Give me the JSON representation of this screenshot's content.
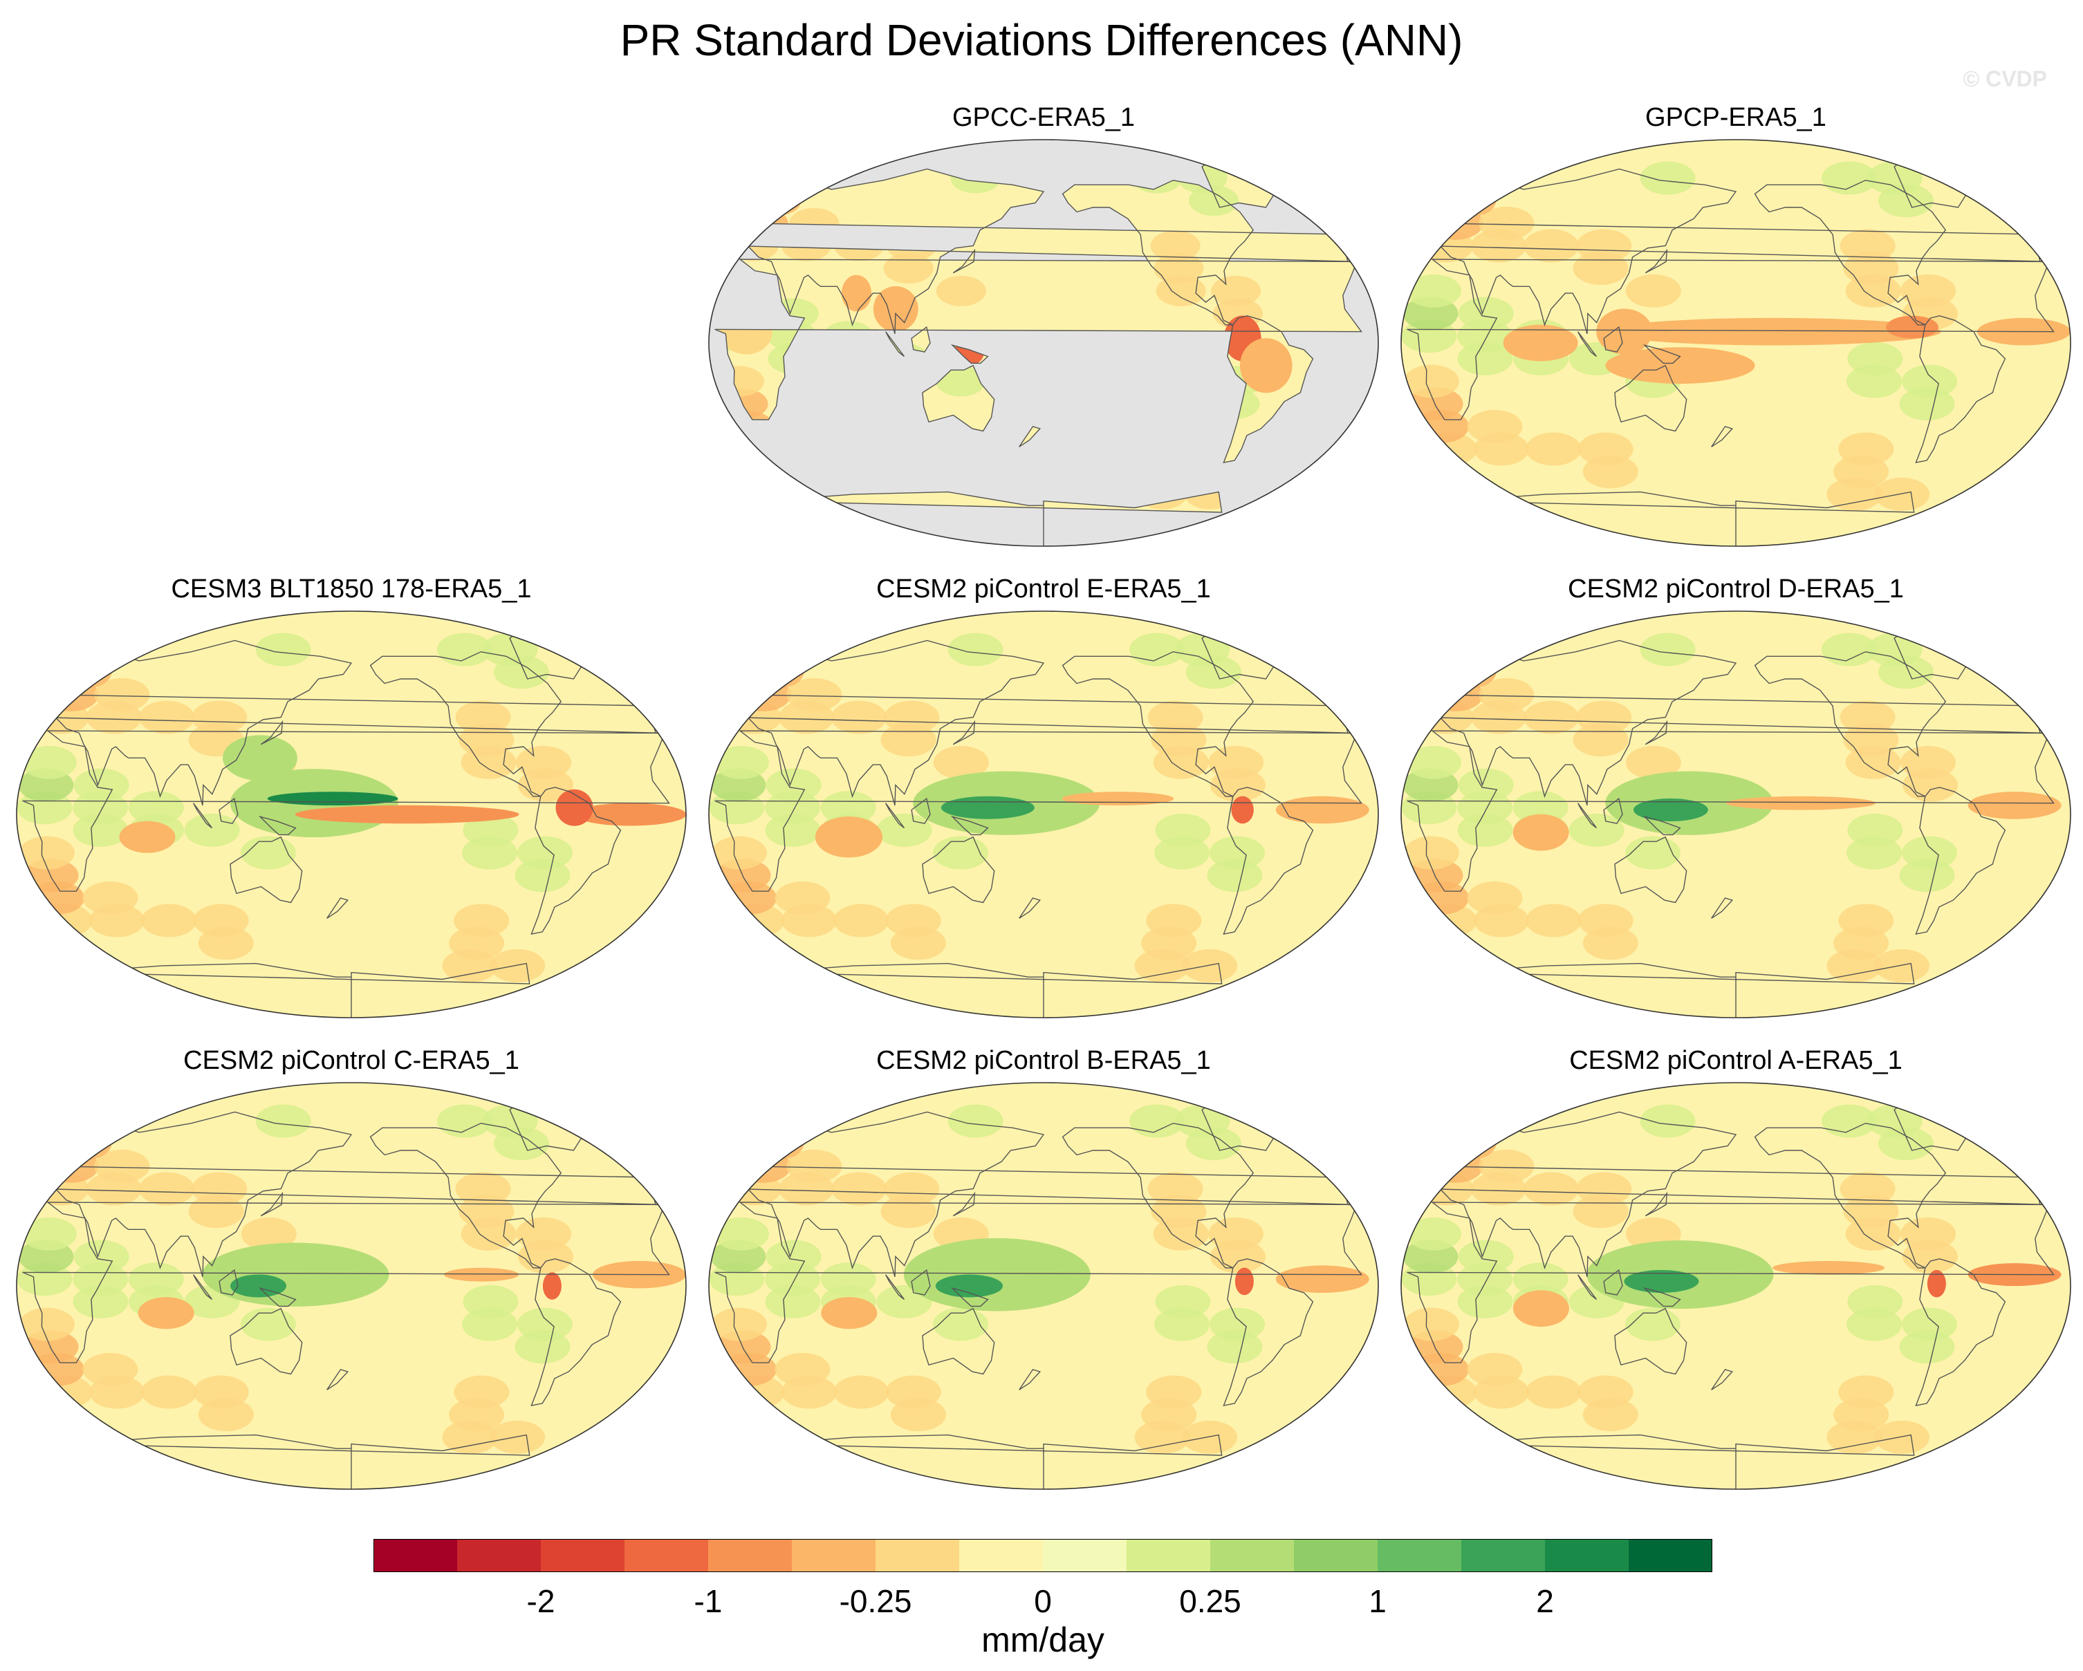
{
  "figure": {
    "title": "PR Standard Deviations Differences (ANN)",
    "watermark": "© CVDP"
  },
  "chart_data": {
    "type": "heatmap",
    "title": "PR Standard Deviations Differences (ANN)",
    "projection": "Robinson, Pacific-centered (central longitude 180)",
    "units": "mm/day",
    "missing_color": "#e3e3e3",
    "colorbar": {
      "orientation": "horizontal",
      "position": "bottom",
      "colors": [
        "#a50026",
        "#c8272b",
        "#de4332",
        "#ee6840",
        "#f79352",
        "#fbb667",
        "#fdd884",
        "#fef3ac",
        "#f3f9b6",
        "#d8ee8c",
        "#b5dd76",
        "#90cd66",
        "#66bc62",
        "#3aa357",
        "#1a8a48",
        "#006837"
      ],
      "tick_labels": [
        "-2",
        "-1",
        "-0.25",
        "0",
        "0.25",
        "1",
        "2"
      ],
      "tick_after_color_index": [
        1,
        3,
        5,
        7,
        9,
        11,
        13
      ]
    },
    "panels": [
      {
        "id": "gpcc",
        "title": "GPCC-ERA5_1",
        "ocean_masked": true,
        "features": [
          {
            "lon": 287,
            "lat": 2,
            "rx": 10,
            "ry": 10,
            "level": -1.5
          },
          {
            "lon": 140,
            "lat": -4,
            "rx": 8,
            "ry": 6,
            "level": -1.5
          },
          {
            "lon": 100,
            "lat": 15,
            "rx": 12,
            "ry": 10,
            "level": -0.8
          },
          {
            "lon": 300,
            "lat": -10,
            "rx": 14,
            "ry": 12,
            "level": -0.6
          },
          {
            "lon": 20,
            "lat": 5,
            "rx": 14,
            "ry": 10,
            "level": -0.4
          },
          {
            "lon": 78,
            "lat": 22,
            "rx": 8,
            "ry": 8,
            "level": -0.6
          }
        ]
      },
      {
        "id": "gpcp",
        "title": "GPCP-ERA5_1",
        "ocean_masked": false,
        "features": [
          {
            "lon": 200,
            "lat": 5,
            "rx": 90,
            "ry": 6,
            "level": -0.6
          },
          {
            "lon": 275,
            "lat": 7,
            "rx": 14,
            "ry": 5,
            "level": -1.2
          },
          {
            "lon": 150,
            "lat": -10,
            "rx": 40,
            "ry": 8,
            "level": -0.6
          },
          {
            "lon": 335,
            "lat": 5,
            "rx": 25,
            "ry": 6,
            "level": -0.6
          },
          {
            "lon": 75,
            "lat": 0,
            "rx": 20,
            "ry": 8,
            "level": -0.5
          },
          {
            "lon": 120,
            "lat": 5,
            "rx": 15,
            "ry": 10,
            "level": -0.5
          }
        ]
      },
      {
        "id": "cesm3-blt1850",
        "title": "CESM3 BLT1850 178-ERA5_1",
        "ocean_masked": false,
        "features": [
          {
            "lon": 160,
            "lat": 5,
            "rx": 45,
            "ry": 15,
            "level": 0.9
          },
          {
            "lon": 170,
            "lat": 7,
            "rx": 35,
            "ry": 3,
            "level": 3.0
          },
          {
            "lon": 210,
            "lat": 0,
            "rx": 60,
            "ry": 4,
            "level": -1.3
          },
          {
            "lon": 330,
            "lat": 0,
            "rx": 30,
            "ry": 5,
            "level": -1.0
          },
          {
            "lon": 70,
            "lat": -10,
            "rx": 15,
            "ry": 7,
            "level": -0.6
          },
          {
            "lon": 300,
            "lat": 3,
            "rx": 10,
            "ry": 8,
            "level": -1.5
          },
          {
            "lon": 130,
            "lat": 25,
            "rx": 20,
            "ry": 10,
            "level": 0.6
          }
        ]
      },
      {
        "id": "cesm2-e",
        "title": "CESM2 piControl E-ERA5_1",
        "ocean_masked": false,
        "features": [
          {
            "lon": 160,
            "lat": 5,
            "rx": 50,
            "ry": 14,
            "level": 0.8
          },
          {
            "lon": 150,
            "lat": 3,
            "rx": 25,
            "ry": 5,
            "level": 2.2
          },
          {
            "lon": 220,
            "lat": 7,
            "rx": 30,
            "ry": 3,
            "level": -0.8
          },
          {
            "lon": 330,
            "lat": 2,
            "rx": 25,
            "ry": 6,
            "level": -0.9
          },
          {
            "lon": 75,
            "lat": -10,
            "rx": 18,
            "ry": 9,
            "level": -0.7
          },
          {
            "lon": 287,
            "lat": 2,
            "rx": 6,
            "ry": 6,
            "level": -1.6
          }
        ]
      },
      {
        "id": "cesm2-d",
        "title": "CESM2 piControl D-ERA5_1",
        "ocean_masked": false,
        "features": [
          {
            "lon": 155,
            "lat": 5,
            "rx": 45,
            "ry": 14,
            "level": 0.8
          },
          {
            "lon": 145,
            "lat": 2,
            "rx": 20,
            "ry": 5,
            "level": 2.2
          },
          {
            "lon": 215,
            "lat": 5,
            "rx": 40,
            "ry": 3,
            "level": -0.6
          },
          {
            "lon": 330,
            "lat": 4,
            "rx": 25,
            "ry": 6,
            "level": -0.8
          },
          {
            "lon": 75,
            "lat": -8,
            "rx": 15,
            "ry": 8,
            "level": -0.6
          }
        ]
      },
      {
        "id": "cesm2-c",
        "title": "CESM2 piControl C-ERA5_1",
        "ocean_masked": false,
        "features": [
          {
            "lon": 150,
            "lat": 5,
            "rx": 50,
            "ry": 14,
            "level": 0.8
          },
          {
            "lon": 130,
            "lat": 0,
            "rx": 15,
            "ry": 5,
            "level": 2.0
          },
          {
            "lon": 250,
            "lat": 5,
            "rx": 20,
            "ry": 3,
            "level": -0.8
          },
          {
            "lon": 335,
            "lat": 5,
            "rx": 25,
            "ry": 6,
            "level": -0.9
          },
          {
            "lon": 80,
            "lat": -12,
            "rx": 15,
            "ry": 7,
            "level": -0.6
          },
          {
            "lon": 288,
            "lat": 0,
            "rx": 5,
            "ry": 6,
            "level": -1.6
          }
        ]
      },
      {
        "id": "cesm2-b",
        "title": "CESM2 piControl B-ERA5_1",
        "ocean_masked": false,
        "features": [
          {
            "lon": 155,
            "lat": 5,
            "rx": 50,
            "ry": 16,
            "level": 0.8
          },
          {
            "lon": 140,
            "lat": 0,
            "rx": 18,
            "ry": 5,
            "level": 2.4
          },
          {
            "lon": 330,
            "lat": 3,
            "rx": 25,
            "ry": 6,
            "level": -0.9
          },
          {
            "lon": 75,
            "lat": -12,
            "rx": 15,
            "ry": 7,
            "level": -0.6
          },
          {
            "lon": 288,
            "lat": 2,
            "rx": 5,
            "ry": 6,
            "level": -1.6
          }
        ]
      },
      {
        "id": "cesm2-a",
        "title": "CESM2 piControl A-ERA5_1",
        "ocean_masked": false,
        "features": [
          {
            "lon": 150,
            "lat": 5,
            "rx": 50,
            "ry": 15,
            "level": 0.8
          },
          {
            "lon": 140,
            "lat": 2,
            "rx": 20,
            "ry": 5,
            "level": 2.0
          },
          {
            "lon": 230,
            "lat": 8,
            "rx": 30,
            "ry": 3,
            "level": -0.7
          },
          {
            "lon": 330,
            "lat": 5,
            "rx": 25,
            "ry": 5,
            "level": -1.0
          },
          {
            "lon": 75,
            "lat": -10,
            "rx": 15,
            "ry": 8,
            "level": -0.6
          },
          {
            "lon": 288,
            "lat": 1,
            "rx": 5,
            "ry": 6,
            "level": -1.5
          }
        ]
      }
    ]
  }
}
